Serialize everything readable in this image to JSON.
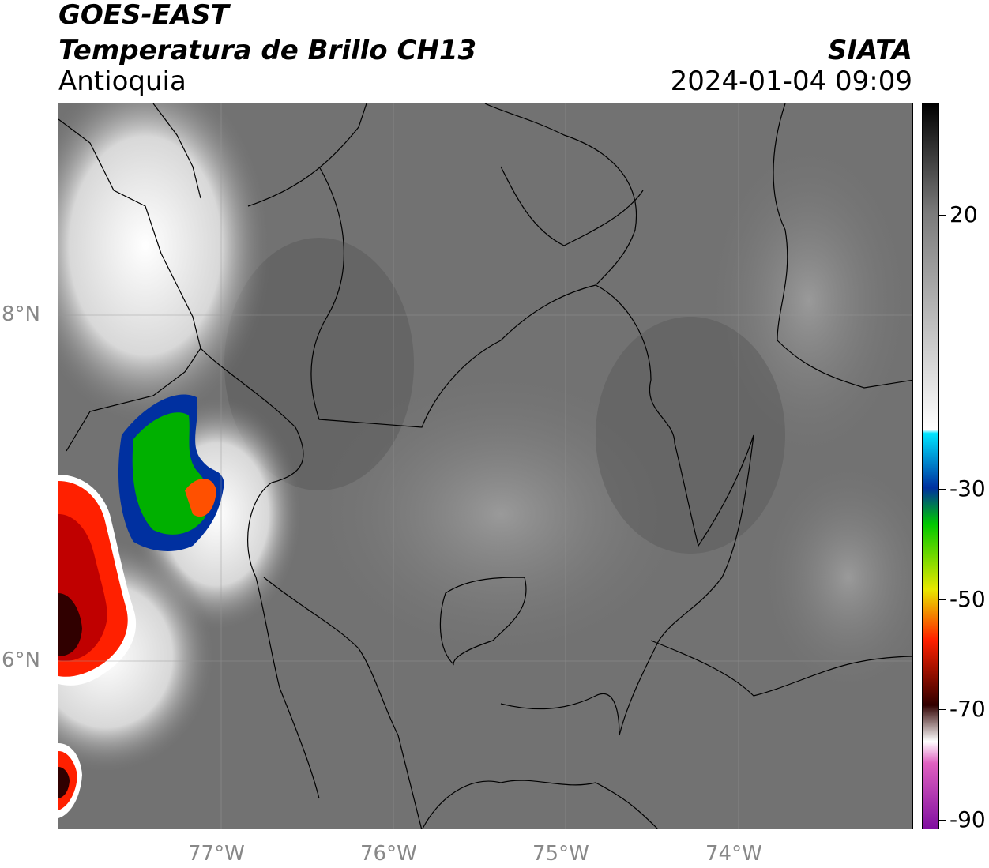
{
  "header": {
    "satellite": "GOES-EAST",
    "product": "Temperatura de Brillo CH13",
    "region": "Antioquia",
    "agency": "SIATA",
    "datetime": "2024-01-04 09:09"
  },
  "map": {
    "lat_labels": [
      "8°N",
      "6°N"
    ],
    "lon_labels": [
      "77°W",
      "76°W",
      "75°W",
      "74°W"
    ],
    "background_color": "#6e6e6e",
    "border_color": "#000000"
  },
  "colorbar": {
    "labels": [
      "20",
      "-30",
      "-50",
      "-70",
      "-90"
    ],
    "colors_top_to_bottom": [
      "#000000",
      "#7a7a7a",
      "#ffffff",
      "#00e5ff",
      "#0030a0",
      "#00c800",
      "#e8e800",
      "#ff2000",
      "#300000",
      "#ffffff",
      "#e060c0",
      "#8010a0"
    ]
  }
}
